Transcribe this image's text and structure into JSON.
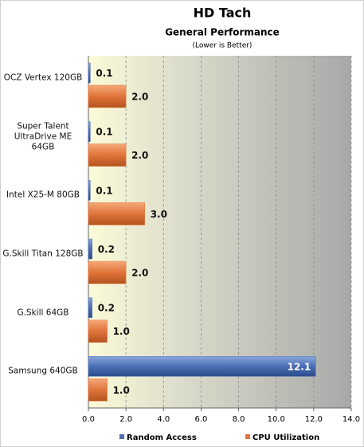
{
  "chart_data": {
    "type": "hbar",
    "title": "HD Tach",
    "subtitle": "General Performance",
    "note": "(Lower is Better)",
    "categories": [
      "OCZ Vertex 120GB",
      "Super Talent UltraDrive ME 64GB",
      "Intel X25-M 80GB",
      "G.Skill Titan 128GB",
      "G.Skill 64GB",
      "Samsung 640GB"
    ],
    "series": [
      {
        "name": "Random Access",
        "color": "#4a6fb5",
        "values": [
          0.1,
          0.1,
          0.1,
          0.2,
          0.2,
          12.1
        ],
        "value_labels": [
          "0.1",
          "0.1",
          "0.1",
          "0.2",
          "0.2",
          "12.1"
        ]
      },
      {
        "name": "CPU Utilization",
        "color": "#e0743a",
        "values": [
          2.0,
          2.0,
          3.0,
          2.0,
          1.0,
          1.0
        ],
        "value_labels": [
          "2.0",
          "2.0",
          "3.0",
          "2.0",
          "1.0",
          "1.0"
        ]
      }
    ],
    "xlim": [
      0,
      14
    ],
    "xticks": [
      {
        "value": 0,
        "label": "0.0"
      },
      {
        "value": 2,
        "label": "2.0"
      },
      {
        "value": 4,
        "label": "4.0"
      },
      {
        "value": 6,
        "label": "6.0"
      },
      {
        "value": 8,
        "label": "8.0"
      },
      {
        "value": 10,
        "label": "10.0"
      },
      {
        "value": 12,
        "label": "12.0"
      },
      {
        "value": 14,
        "label": "14.0"
      }
    ],
    "grid": true
  }
}
